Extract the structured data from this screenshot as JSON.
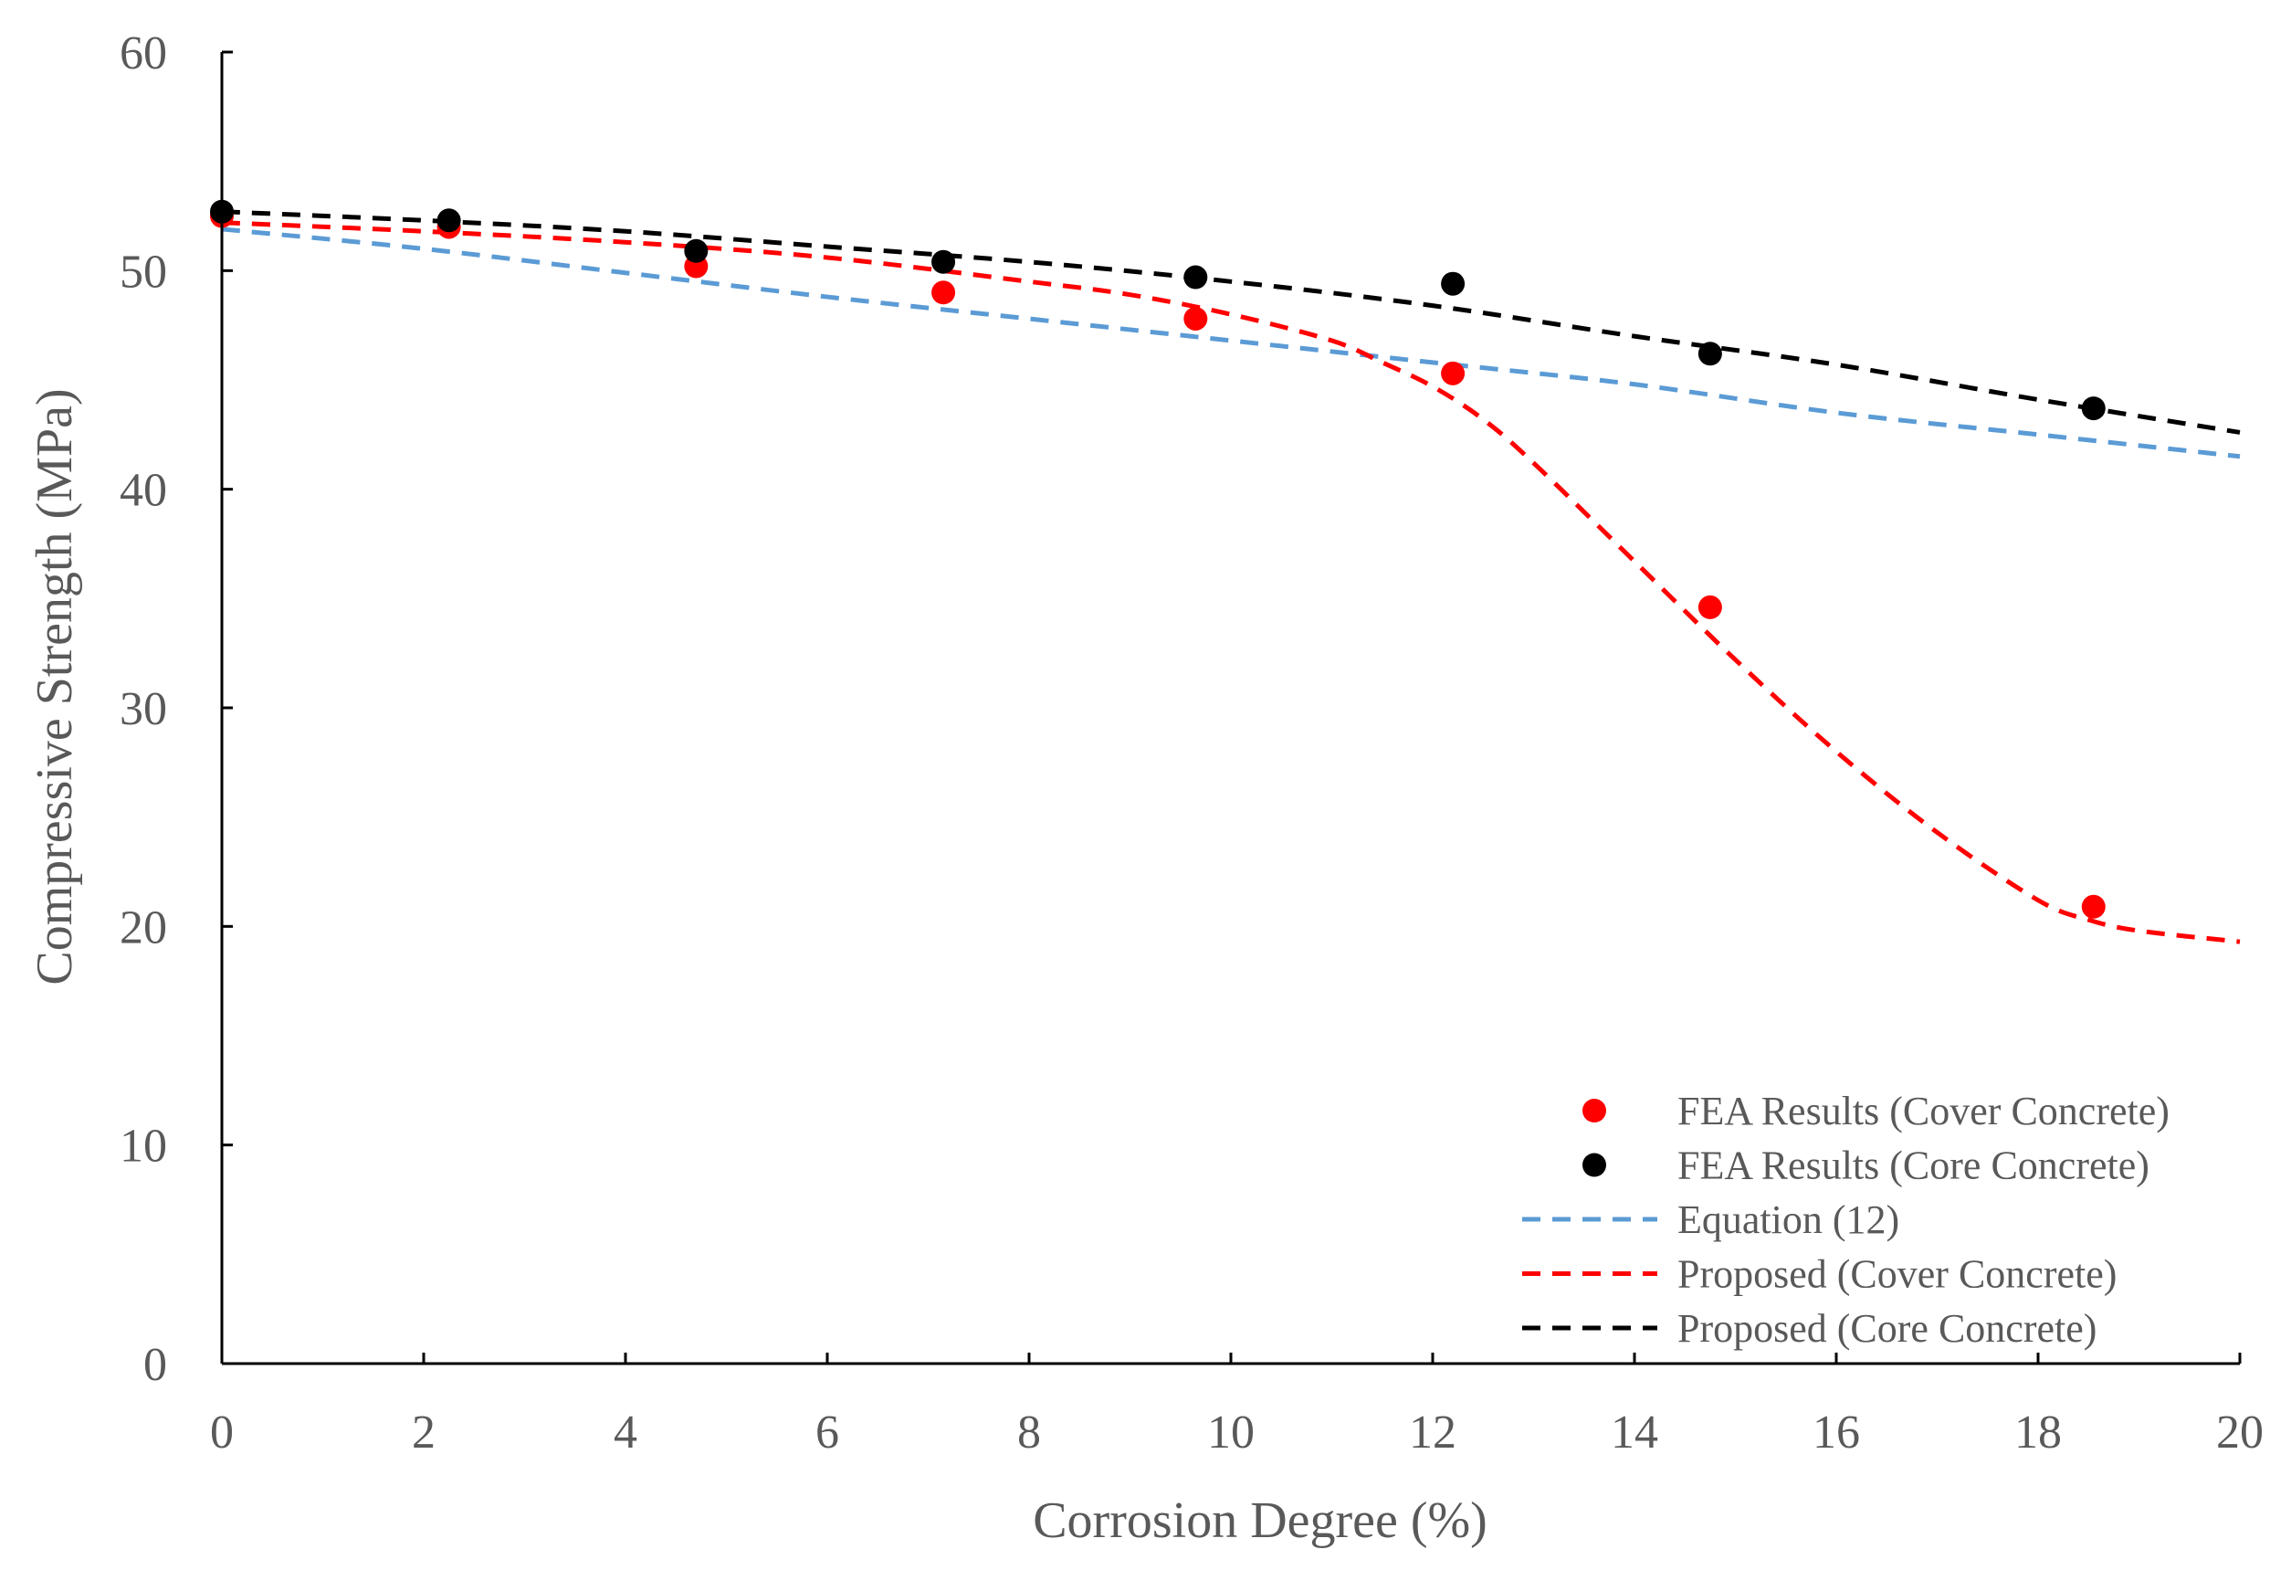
{
  "chart_data": {
    "type": "scatter",
    "title": "",
    "xlabel": "Corrosion Degree (%)",
    "ylabel": "Compressive Strength (MPa)",
    "xlim": [
      0,
      20
    ],
    "ylim": [
      0,
      60
    ],
    "x_ticks": [
      "0",
      "2",
      "4",
      "6",
      "8",
      "10",
      "12",
      "14",
      "16",
      "18",
      "20"
    ],
    "y_ticks": [
      "0",
      "10",
      "20",
      "30",
      "40",
      "50",
      "60"
    ],
    "grid": false,
    "legend_position": "bottom-right",
    "series": [
      {
        "name": "FEA Results (Cover Concrete)",
        "kind": "points",
        "color": "#ff0000",
        "x": [
          0,
          2.25,
          4.7,
          7.15,
          9.65,
          12.2,
          14.75,
          18.55
        ],
        "y": [
          52.5,
          52.0,
          50.2,
          49.0,
          47.8,
          45.3,
          34.6,
          20.9
        ]
      },
      {
        "name": "FEA Results (Core Concrete)",
        "kind": "points",
        "color": "#000000",
        "x": [
          0,
          2.25,
          4.7,
          7.15,
          9.65,
          12.2,
          14.75,
          18.55
        ],
        "y": [
          52.7,
          52.3,
          50.9,
          50.4,
          49.7,
          49.4,
          46.2,
          43.7
        ]
      },
      {
        "name": "Equation (12)",
        "kind": "dashed-line",
        "color": "#5b9bd5",
        "x": [
          0,
          2,
          4,
          6,
          8,
          10,
          12,
          14,
          16,
          18,
          20
        ],
        "y": [
          51.9,
          51.0,
          49.9,
          48.8,
          47.8,
          46.8,
          45.8,
          44.8,
          43.5,
          42.5,
          41.5
        ]
      },
      {
        "name": "Proposed (Cover Concrete)",
        "kind": "dashed-line",
        "color": "#ff0000",
        "x": [
          0,
          2,
          4,
          6,
          8,
          9,
          10,
          11,
          11.5,
          12,
          12.5,
          13,
          14,
          15,
          16,
          17,
          18,
          18.5,
          19,
          20
        ],
        "y": [
          52.2,
          51.8,
          51.3,
          50.6,
          49.5,
          48.9,
          48.0,
          46.8,
          45.8,
          44.7,
          43.2,
          41.2,
          36.7,
          32.2,
          28.0,
          24.3,
          21.2,
          20.3,
          19.8,
          19.3
        ]
      },
      {
        "name": "Proposed (Core Concrete)",
        "kind": "dashed-line",
        "color": "#000000",
        "x": [
          0,
          2,
          4,
          6,
          8,
          10,
          12,
          14,
          16,
          18,
          20
        ],
        "y": [
          52.7,
          52.3,
          51.8,
          51.1,
          50.4,
          49.5,
          48.4,
          47.0,
          45.7,
          44.1,
          42.6
        ]
      }
    ]
  }
}
